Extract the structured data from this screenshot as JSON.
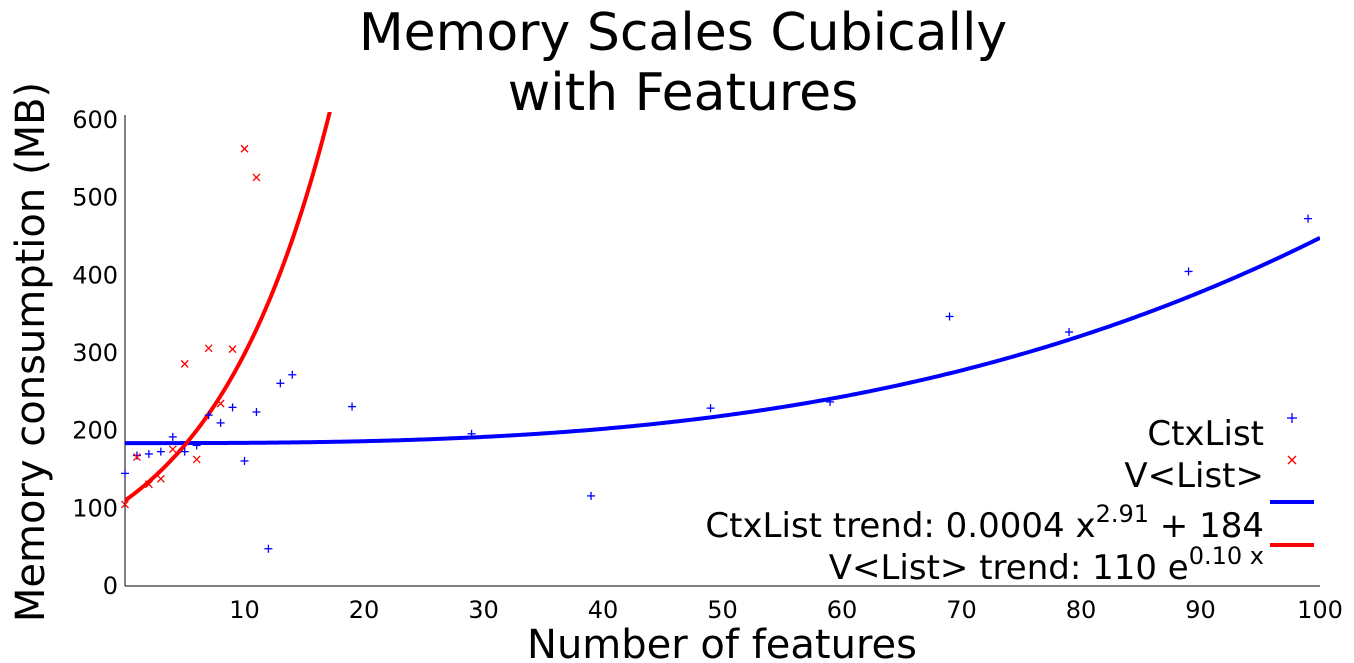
{
  "chart_data": {
    "type": "scatter",
    "title_lines": [
      "Memory Scales Cubically",
      "with Features"
    ],
    "xlabel": "Number of features",
    "ylabel": "Memory consumption (MB)",
    "xlim": [
      0,
      100
    ],
    "ylim": [
      0,
      600
    ],
    "xticks": [
      10,
      20,
      30,
      40,
      50,
      60,
      70,
      80,
      90,
      100
    ],
    "yticks": [
      0,
      100,
      200,
      300,
      400,
      500,
      600
    ],
    "grid": false,
    "legend_position": "bottom-right",
    "series": [
      {
        "name": "CtxList",
        "marker": "+",
        "color": "#0000ff",
        "points": [
          [
            0,
            145
          ],
          [
            1,
            168
          ],
          [
            2,
            170
          ],
          [
            3,
            173
          ],
          [
            4,
            192
          ],
          [
            5,
            173
          ],
          [
            6,
            181
          ],
          [
            7,
            220
          ],
          [
            8,
            210
          ],
          [
            9,
            230
          ],
          [
            10,
            161
          ],
          [
            11,
            224
          ],
          [
            12,
            48
          ],
          [
            13,
            261
          ],
          [
            14,
            272
          ],
          [
            19,
            231
          ],
          [
            29,
            196
          ],
          [
            39,
            116
          ],
          [
            49,
            229
          ],
          [
            59,
            237
          ],
          [
            69,
            347
          ],
          [
            79,
            327
          ],
          [
            89,
            405
          ],
          [
            99,
            473
          ]
        ]
      },
      {
        "name": "V<List>",
        "marker": "x",
        "color": "#ff0000",
        "points": [
          [
            0,
            105
          ],
          [
            1,
            166
          ],
          [
            2,
            131
          ],
          [
            3,
            138
          ],
          [
            4,
            176
          ],
          [
            5,
            286
          ],
          [
            6,
            163
          ],
          [
            7,
            306
          ],
          [
            8,
            235
          ],
          [
            9,
            305
          ],
          [
            10,
            563
          ],
          [
            11,
            526
          ]
        ]
      }
    ],
    "trends": [
      {
        "name": "CtxList trend",
        "formula": "a*x^b + c",
        "a": 0.0004,
        "b": 2.91,
        "c": 184,
        "color": "#0000ff"
      },
      {
        "name": "V<List> trend",
        "formula": "a*e^(b*x)",
        "a": 110,
        "b": 0.1,
        "color": "#ff0000"
      }
    ],
    "legend": {
      "ctx_label": "CtxList",
      "vlist_label": "V<List>",
      "ctx_trend_prefix": "CtxList trend: 0.0004 x",
      "ctx_trend_exp": "2.91",
      "ctx_trend_suffix": " + 184",
      "vlist_trend_prefix": "V<List> trend: 110 e",
      "vlist_trend_exp": "0.10 x"
    }
  }
}
